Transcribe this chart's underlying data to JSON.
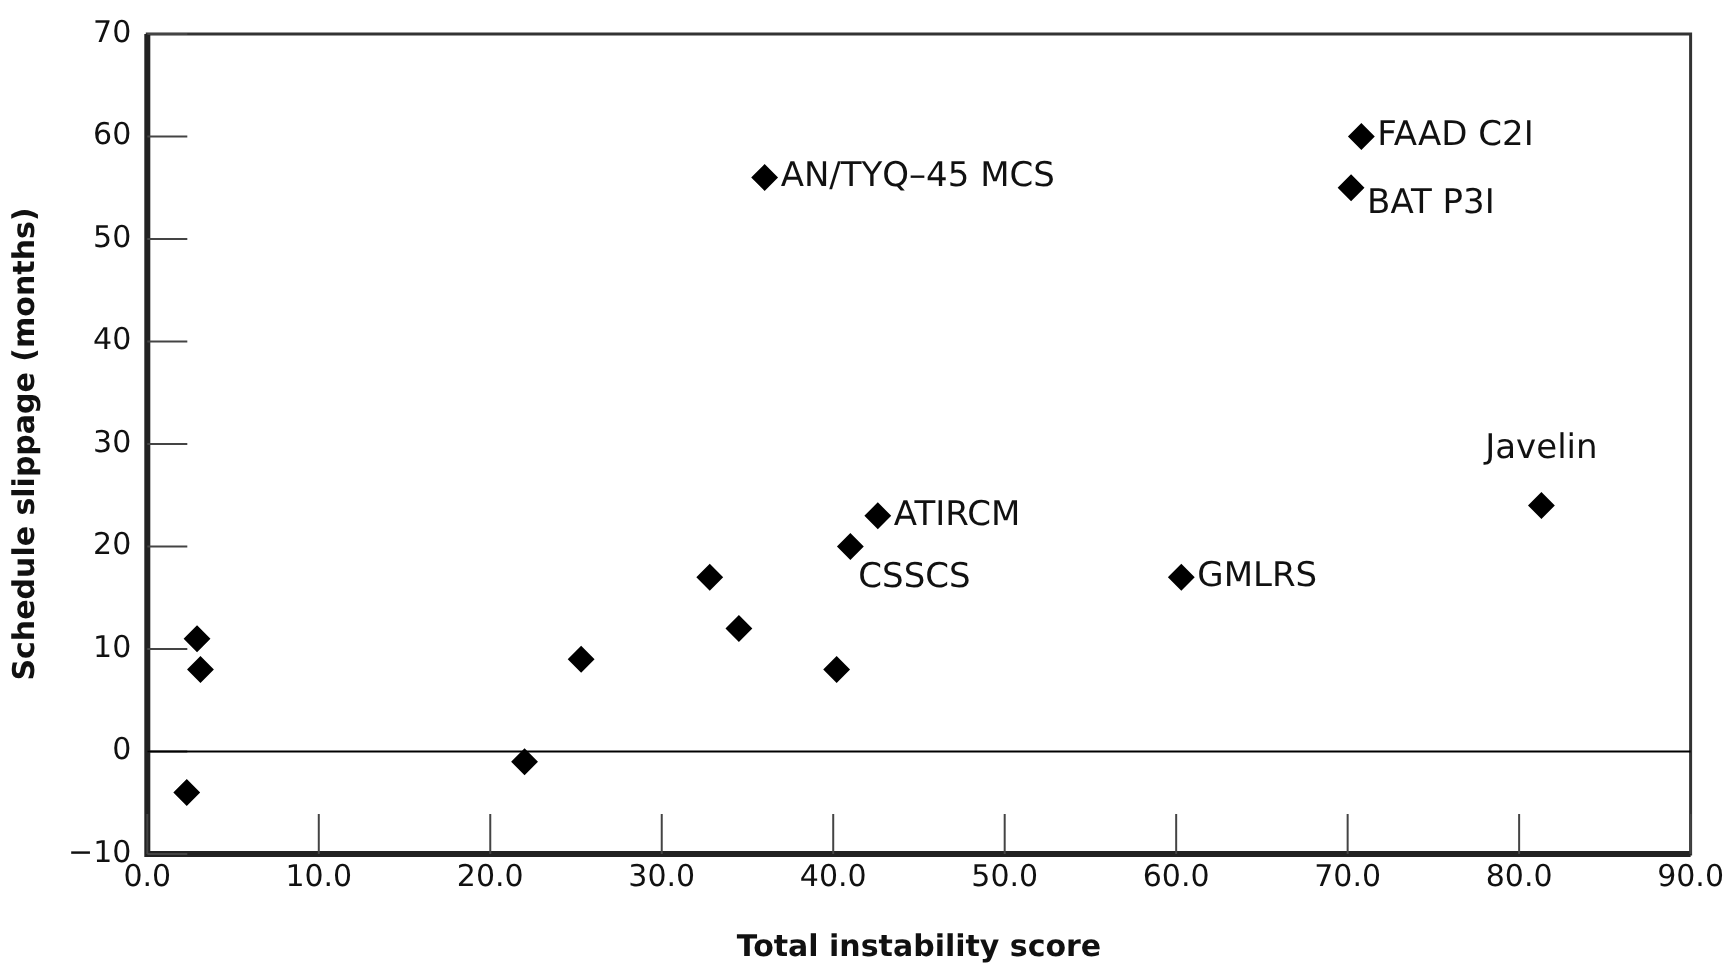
{
  "chart_data": {
    "type": "scatter",
    "xlabel": "Total instability score",
    "ylabel": "Schedule slippage (months)",
    "x": [
      2.3,
      2.9,
      3.1,
      22.0,
      25.3,
      32.8,
      34.5,
      36.0,
      40.2,
      41.0,
      42.6,
      60.3,
      70.2,
      70.8,
      81.3
    ],
    "series": [
      {
        "color": "#000000",
        "values": [
          -4,
          11,
          8,
          -1,
          9,
          17,
          12,
          56,
          8,
          20,
          23,
          17,
          55,
          60,
          24
        ]
      }
    ],
    "marker": "diamond",
    "grid": false,
    "legend": false,
    "xlim": [
      0,
      90
    ],
    "xticks": [
      {
        "value": 0,
        "label": "0.0"
      },
      {
        "value": 10,
        "label": "10.0"
      },
      {
        "value": 20,
        "label": "20.0"
      },
      {
        "value": 30,
        "label": "30.0"
      },
      {
        "value": 40,
        "label": "40.0"
      },
      {
        "value": 50,
        "label": "50.0"
      },
      {
        "value": 60,
        "label": "60.0"
      },
      {
        "value": 70,
        "label": "70.0"
      },
      {
        "value": 80,
        "label": "80.0"
      },
      {
        "value": 90,
        "label": "90.0"
      }
    ],
    "ylim": [
      -10,
      70
    ],
    "yticks": [
      -10,
      0,
      10,
      20,
      30,
      40,
      50,
      60,
      70
    ],
    "ref_lines": [
      {
        "axis": "y",
        "value": 0,
        "color": "#000000"
      }
    ],
    "annotations": [
      {
        "text": "AN/TYQ–45 MCS",
        "x": 36.0,
        "y": 56
      },
      {
        "text": "FAAD C2I",
        "x": 70.8,
        "y": 60
      },
      {
        "text": "BAT P3I",
        "x": 70.2,
        "y": 55
      },
      {
        "text": "Javelin",
        "x": 81.3,
        "y": 24
      },
      {
        "text": "ATIRCM",
        "x": 42.6,
        "y": 23
      },
      {
        "text": "CSSCS",
        "x": 41.0,
        "y": 20
      },
      {
        "text": "GMLRS",
        "x": 60.3,
        "y": 17
      }
    ]
  }
}
